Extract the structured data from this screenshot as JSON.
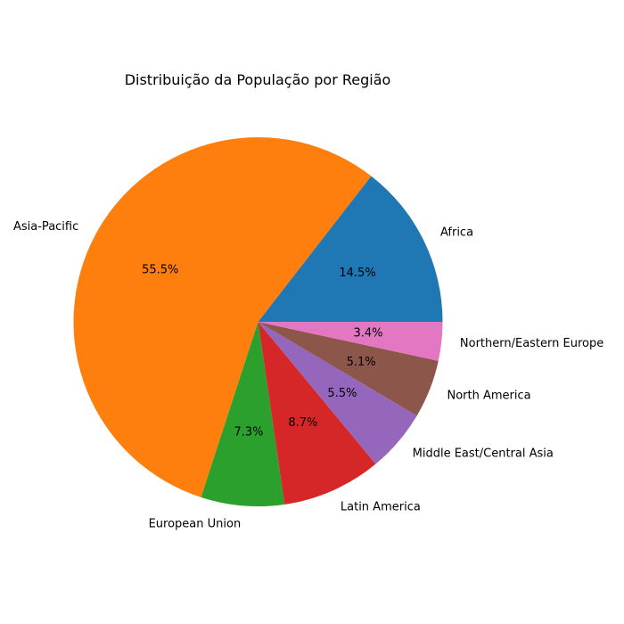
{
  "chart_data": {
    "type": "pie",
    "title": "Distribuição da População por Região",
    "categories": [
      "Africa",
      "Asia-Pacific",
      "European Union",
      "Latin America",
      "Middle East/Central Asia",
      "North America",
      "Northern/Eastern Europe"
    ],
    "values": [
      14.5,
      55.5,
      7.3,
      8.7,
      5.5,
      5.1,
      3.4
    ],
    "value_labels": [
      "14.5%",
      "55.5%",
      "7.3%",
      "8.7%",
      "5.5%",
      "5.1%",
      "3.4%"
    ],
    "colors": [
      "#1f77b4",
      "#ff7f0e",
      "#2ca02c",
      "#d62728",
      "#9467bd",
      "#8c564b",
      "#e377c2"
    ],
    "start_angle_deg": 0,
    "direction": "counterclockwise",
    "legend": "none"
  }
}
